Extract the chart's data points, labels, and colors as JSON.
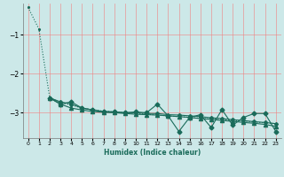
{
  "xlabel": "Humidex (Indice chaleur)",
  "bg_color": "#cce8e8",
  "grid_color": "#f08080",
  "line_color": "#1a6b5a",
  "xlim": [
    -0.5,
    23.5
  ],
  "ylim": [
    -3.65,
    -0.2
  ],
  "yticks": [
    -3,
    -2,
    -1
  ],
  "xticks": [
    0,
    1,
    2,
    3,
    4,
    5,
    6,
    7,
    8,
    9,
    10,
    11,
    12,
    13,
    14,
    15,
    16,
    17,
    18,
    19,
    20,
    21,
    22,
    23
  ],
  "series": [
    {
      "x": [
        0,
        1,
        2,
        3,
        4,
        5,
        6,
        7,
        8,
        9,
        10,
        11,
        12,
        13,
        14,
        15,
        16,
        17,
        18,
        19,
        20,
        21,
        22,
        23
      ],
      "y": [
        -0.3,
        -0.85,
        -2.6,
        -2.75,
        -2.8,
        -2.88,
        -2.92,
        -2.96,
        -2.98,
        -3.0,
        -3.02,
        -3.04,
        -3.06,
        -3.08,
        -3.1,
        -3.12,
        -3.14,
        -3.16,
        -3.18,
        -3.2,
        -3.22,
        -3.24,
        -3.26,
        -3.28
      ],
      "marker": ".",
      "linestyle": "dotted",
      "linewidth": 0.8,
      "markersize": 2.5
    },
    {
      "x": [
        2,
        3,
        4,
        5,
        6,
        7,
        8,
        9,
        10,
        11,
        12,
        13,
        14,
        15,
        16,
        17,
        18,
        19,
        20,
        21,
        22,
        23
      ],
      "y": [
        -2.62,
        -2.78,
        -2.72,
        -2.88,
        -2.93,
        -2.97,
        -2.98,
        -3.0,
        -2.98,
        -3.0,
        -2.78,
        -3.08,
        -3.48,
        -3.12,
        -3.05,
        -3.38,
        -2.92,
        -3.32,
        -3.12,
        -3.02,
        -3.02,
        -3.48
      ],
      "marker": "D",
      "linestyle": "-",
      "linewidth": 0.8,
      "markersize": 2.5
    },
    {
      "x": [
        2,
        3,
        4,
        5,
        6,
        7,
        8,
        9,
        10,
        11,
        12,
        13,
        14,
        15,
        16,
        17,
        18,
        19,
        20,
        21,
        22,
        23
      ],
      "y": [
        -2.62,
        -2.78,
        -2.88,
        -2.93,
        -2.97,
        -2.99,
        -3.0,
        -3.02,
        -3.04,
        -3.05,
        -3.06,
        -3.08,
        -3.1,
        -3.12,
        -3.15,
        -3.17,
        -3.2,
        -3.22,
        -3.25,
        -3.27,
        -3.3,
        -3.35
      ],
      "marker": "^",
      "linestyle": "-",
      "linewidth": 0.8,
      "markersize": 3
    },
    {
      "x": [
        2,
        3,
        4,
        5,
        6,
        7,
        8,
        9,
        10,
        11,
        12,
        13,
        14,
        15,
        16,
        17,
        18,
        19,
        20,
        21,
        22,
        23
      ],
      "y": [
        -2.62,
        -2.72,
        -2.78,
        -2.88,
        -2.93,
        -2.97,
        -2.98,
        -3.0,
        -3.0,
        -3.02,
        -3.02,
        -3.05,
        -3.06,
        -3.08,
        -3.1,
        -3.13,
        -3.15,
        -3.18,
        -3.2,
        -3.23,
        -3.25,
        -3.28
      ],
      "marker": "P",
      "linestyle": "-",
      "linewidth": 0.8,
      "markersize": 2.5
    }
  ]
}
